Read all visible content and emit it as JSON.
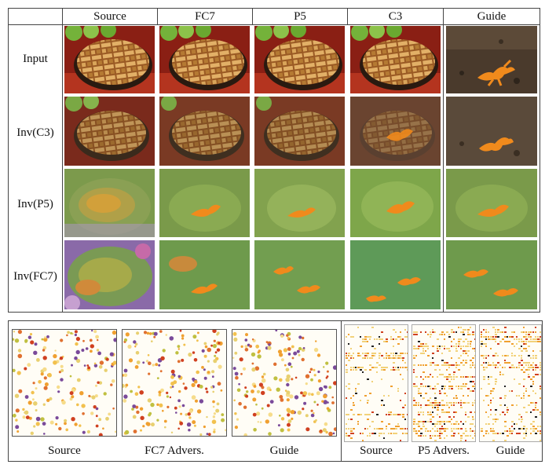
{
  "columns": [
    "Source",
    "FC7",
    "P5",
    "C3",
    "Guide"
  ],
  "rows": [
    "Input",
    "Inv(C3)",
    "Inv(P5)",
    "Inv(FC7)"
  ],
  "images": [
    [
      "apple pie",
      "apple pie",
      "apple pie",
      "apple pie",
      "orange newt on soil"
    ],
    [
      "apple pie reconstruction",
      "apple pie reconstruction",
      "apple pie reconstruction",
      "pie with newt features",
      "newt on soil reconstruction"
    ],
    [
      "distorted pie",
      "green newt reconstruction",
      "green newt reconstruction",
      "green newt reconstruction",
      "green newt reconstruction"
    ],
    [
      "colorful distorted pie",
      "green multiple newts",
      "green multiple newts",
      "green multiple newts",
      "green multiple newts"
    ]
  ],
  "bottom_left": {
    "captions": [
      "Source",
      "FC7 Advers.",
      "Guide"
    ]
  },
  "bottom_right": {
    "captions": [
      "Source",
      "P5 Advers.",
      "Guide"
    ]
  },
  "colors": {
    "pie_crust": "#c88a3c",
    "pie_bg_red": "#8a1f14",
    "soil": "#4a3a2c",
    "newt_orange": "#f08a1c",
    "recon_green": "#7a9a4a"
  }
}
